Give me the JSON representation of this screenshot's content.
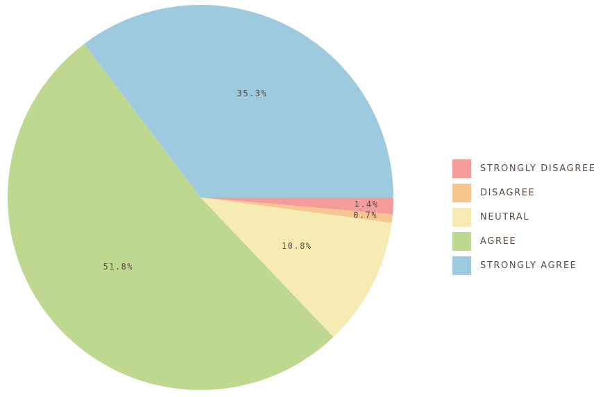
{
  "chart_data": {
    "type": "pie",
    "categories": [
      "STRONGLY DISAGREE",
      "DISAGREE",
      "NEUTRAL",
      "AGREE",
      "STRONGLY AGREE"
    ],
    "values": [
      1.4,
      0.7,
      10.8,
      51.8,
      35.3
    ],
    "labels": [
      "1.4%",
      "0.7%",
      "10.8%",
      "51.8%",
      "35.3%"
    ],
    "colors": [
      "#f49b9b",
      "#f6c68e",
      "#f6ebb4",
      "#bed98f",
      "#9ecae0"
    ],
    "legend_position": "right",
    "start_angle": "3 o'clock",
    "direction": "clockwise"
  }
}
